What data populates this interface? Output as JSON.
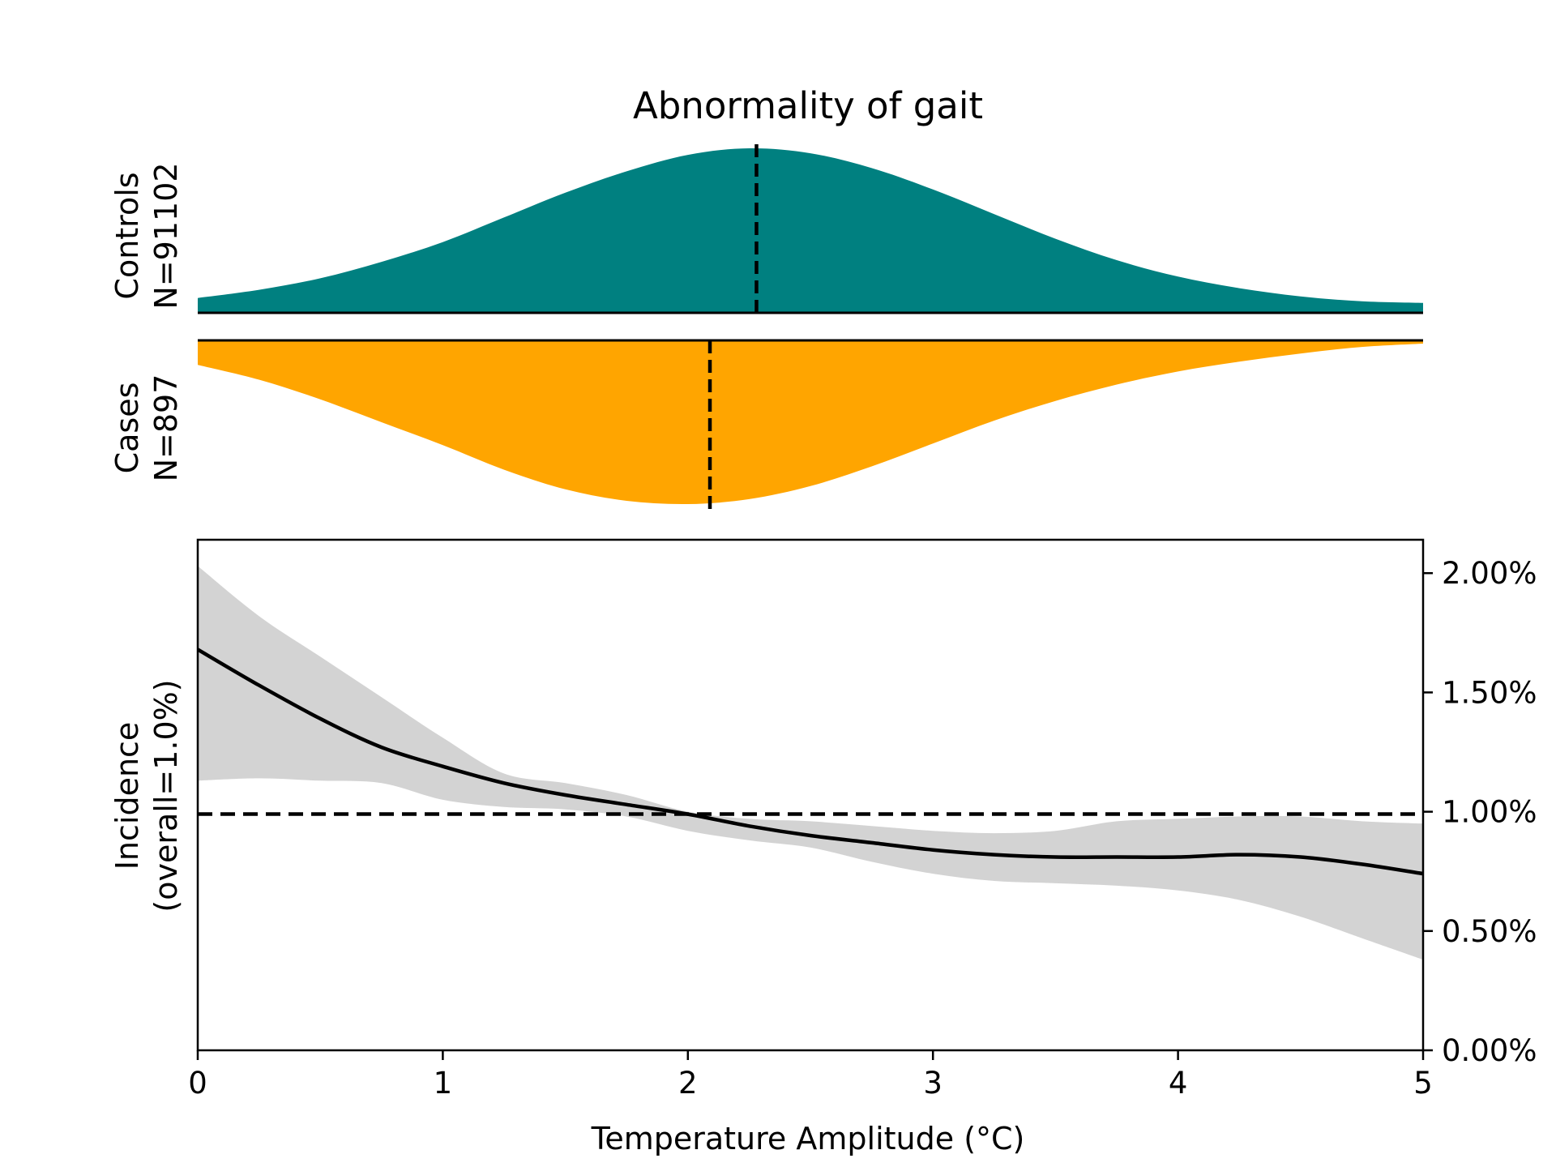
{
  "colors": {
    "controls": "#008080",
    "cases": "#FFA500",
    "ci_band": "#D3D3D3",
    "line": "#000000"
  },
  "chart_data": {
    "title": "Abnormality of gait",
    "controls": {
      "label_line1": "Controls",
      "label_line2": "N=91102",
      "type": "area",
      "x": [
        0,
        0.25,
        0.5,
        0.75,
        1.0,
        1.25,
        1.5,
        1.75,
        2.0,
        2.25,
        2.5,
        2.75,
        3.0,
        3.25,
        3.5,
        3.75,
        4.0,
        4.25,
        4.5,
        4.75,
        5.0
      ],
      "density": [
        0.09,
        0.14,
        0.21,
        0.31,
        0.43,
        0.58,
        0.73,
        0.86,
        0.96,
        1.0,
        0.97,
        0.88,
        0.75,
        0.6,
        0.45,
        0.32,
        0.22,
        0.15,
        0.1,
        0.07,
        0.06
      ],
      "median": 2.28
    },
    "cases": {
      "label_line1": "Cases",
      "label_line2": "N=897",
      "type": "area",
      "x": [
        0,
        0.25,
        0.5,
        0.75,
        1.0,
        1.25,
        1.5,
        1.75,
        2.0,
        2.25,
        2.5,
        2.75,
        3.0,
        3.25,
        3.5,
        3.75,
        4.0,
        4.25,
        4.5,
        4.75,
        5.0
      ],
      "density": [
        0.15,
        0.24,
        0.36,
        0.5,
        0.64,
        0.79,
        0.91,
        0.98,
        1.0,
        0.97,
        0.89,
        0.77,
        0.63,
        0.49,
        0.37,
        0.27,
        0.19,
        0.13,
        0.08,
        0.04,
        0.02
      ],
      "median": 2.09
    },
    "incidence": {
      "type": "line",
      "ylabel_line1": "Incidence",
      "ylabel_line2": "(overall=1.0%)",
      "xlabel": "Temperature Amplitude (°C)",
      "xlim": [
        0,
        5
      ],
      "ylim": [
        0,
        2.14
      ],
      "x_ticks": [
        0,
        1,
        2,
        3,
        4,
        5
      ],
      "x_tick_labels": [
        "0",
        "1",
        "2",
        "3",
        "4",
        "5"
      ],
      "y_ticks": [
        0,
        0.5,
        1.0,
        1.5,
        2.0
      ],
      "y_tick_labels": [
        "0.00%",
        "0.50%",
        "1.00%",
        "1.50%",
        "2.00%"
      ],
      "overall": 0.99,
      "x": [
        0,
        0.25,
        0.5,
        0.75,
        1.0,
        1.25,
        1.5,
        1.75,
        2.0,
        2.25,
        2.5,
        2.75,
        3.0,
        3.25,
        3.5,
        3.75,
        4.0,
        4.25,
        4.5,
        4.75,
        5.0
      ],
      "y": [
        1.68,
        1.53,
        1.39,
        1.27,
        1.19,
        1.12,
        1.07,
        1.03,
        0.99,
        0.94,
        0.9,
        0.87,
        0.84,
        0.82,
        0.81,
        0.81,
        0.81,
        0.82,
        0.81,
        0.78,
        0.74
      ],
      "lower": [
        1.13,
        1.14,
        1.13,
        1.12,
        1.05,
        1.02,
        1.01,
        0.98,
        0.92,
        0.88,
        0.85,
        0.79,
        0.74,
        0.71,
        0.7,
        0.69,
        0.67,
        0.63,
        0.56,
        0.47,
        0.38
      ],
      "upper": [
        2.03,
        1.82,
        1.65,
        1.48,
        1.31,
        1.16,
        1.12,
        1.07,
        1.0,
        0.97,
        0.96,
        0.94,
        0.92,
        0.91,
        0.92,
        0.96,
        0.97,
        0.98,
        0.98,
        0.96,
        0.95
      ]
    }
  }
}
